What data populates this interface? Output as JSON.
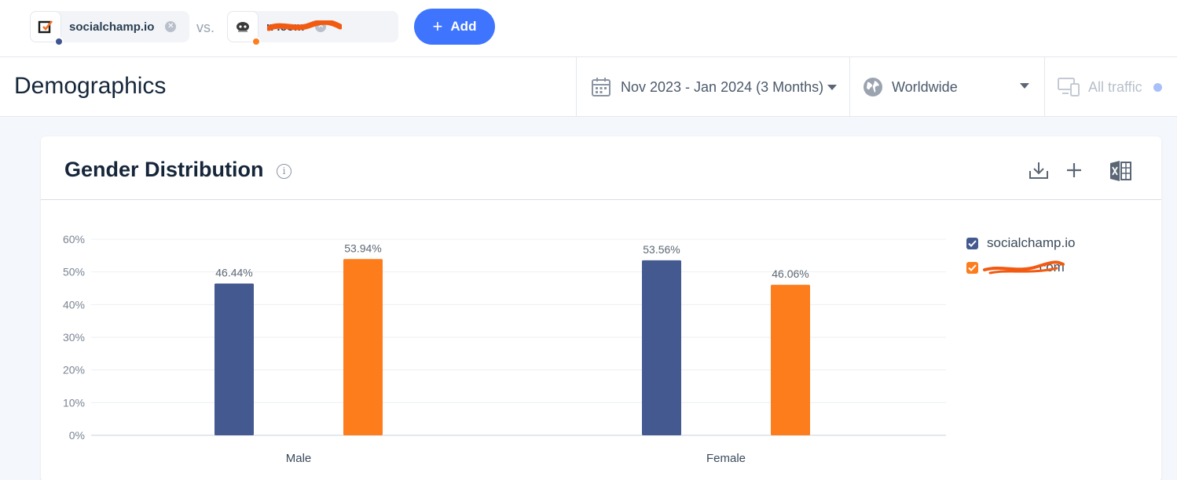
{
  "compare": {
    "site_a": {
      "name": "socialchamp.io",
      "dot_color": "#3f5490"
    },
    "site_b": {
      "name": "n          .com",
      "dot_color": "#fd7e1c"
    },
    "vs_label": "vs.",
    "add_label": "Add"
  },
  "header": {
    "title": "Demographics",
    "date_range": "Nov 2023 - Jan 2024 (3 Months)",
    "region": "Worldwide",
    "traffic": "All traffic"
  },
  "card": {
    "title": "Gender Distribution",
    "info_glyph": "i"
  },
  "chart_data": {
    "type": "bar",
    "categories": [
      "Male",
      "Female"
    ],
    "series": [
      {
        "name": "socialchamp.io",
        "color": "#43598f",
        "values": [
          46.44,
          53.56
        ],
        "labels": [
          "46.44%",
          "53.56%"
        ]
      },
      {
        "name": ".com",
        "color": "#fd7c1c",
        "values": [
          53.94,
          46.06
        ],
        "labels": [
          "53.94%",
          "46.06%"
        ]
      }
    ],
    "y_ticks": [
      "0%",
      "10%",
      "20%",
      "30%",
      "40%",
      "50%",
      "60%"
    ],
    "ylim": [
      0,
      60
    ],
    "grid": true,
    "legend": "right"
  }
}
